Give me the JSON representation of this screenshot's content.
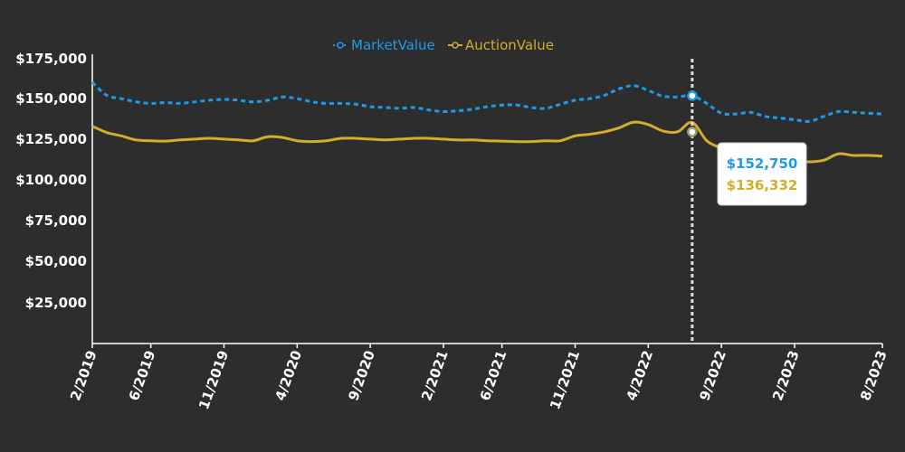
{
  "chart_data": {
    "type": "line",
    "title": "",
    "xlabel": "",
    "ylabel": "",
    "y_ticks": [
      "$25,000",
      "$50,000",
      "$75,000",
      "$100,000",
      "$125,000",
      "$150,000",
      "$175,000"
    ],
    "x_ticks": [
      "2/2019",
      "6/2019",
      "11/2019",
      "4/2020",
      "9/2020",
      "2/2021",
      "6/2021",
      "11/2021",
      "4/2022",
      "9/2022",
      "2/2023",
      "8/2023"
    ],
    "legend": {
      "placement": "top-center"
    },
    "grid": false,
    "series": [
      {
        "name": "MarketValue",
        "color": "#1e9be8",
        "style": "dotted",
        "x": [
          "2019-02",
          "2019-03",
          "2019-04",
          "2019-05",
          "2019-06",
          "2019-07",
          "2019-08",
          "2019-09",
          "2019-10",
          "2019-11",
          "2019-12",
          "2020-01",
          "2020-02",
          "2020-03",
          "2020-04",
          "2020-05",
          "2020-06",
          "2020-07",
          "2020-08",
          "2020-09",
          "2020-10",
          "2020-11",
          "2020-12",
          "2021-01",
          "2021-02",
          "2021-03",
          "2021-04",
          "2021-05",
          "2021-06",
          "2021-07",
          "2021-08",
          "2021-09",
          "2021-10",
          "2021-11",
          "2021-12",
          "2022-01",
          "2022-02",
          "2022-03",
          "2022-04",
          "2022-05",
          "2022-06",
          "2022-07",
          "2022-08",
          "2022-09",
          "2022-10",
          "2022-11",
          "2022-12",
          "2023-01",
          "2023-02",
          "2023-03",
          "2023-04",
          "2023-05",
          "2023-06",
          "2023-07",
          "2023-08"
        ],
        "values": [
          161000,
          153000,
          151000,
          149000,
          148000,
          148500,
          148000,
          149000,
          150000,
          150500,
          150000,
          149000,
          150000,
          152000,
          151000,
          149000,
          148000,
          148000,
          147500,
          146000,
          145500,
          145000,
          145500,
          144000,
          143000,
          143500,
          144500,
          146000,
          147000,
          147000,
          145500,
          145000,
          147500,
          150000,
          151000,
          153000,
          157000,
          159000,
          156000,
          152500,
          152000,
          152750,
          148000,
          142000,
          141500,
          142500,
          140000,
          139000,
          138000,
          137000,
          140000,
          143000,
          142500,
          142000,
          141500
        ]
      },
      {
        "name": "AuctionValue",
        "color": "#d4ad2b",
        "style": "solid",
        "x": [
          "2019-02",
          "2019-03",
          "2019-04",
          "2019-05",
          "2019-06",
          "2019-07",
          "2019-08",
          "2019-09",
          "2019-10",
          "2019-11",
          "2019-12",
          "2020-01",
          "2020-02",
          "2020-03",
          "2020-04",
          "2020-05",
          "2020-06",
          "2020-07",
          "2020-08",
          "2020-09",
          "2020-10",
          "2020-11",
          "2020-12",
          "2021-01",
          "2021-02",
          "2021-03",
          "2021-04",
          "2021-05",
          "2021-06",
          "2021-07",
          "2021-08",
          "2021-09",
          "2021-10",
          "2021-11",
          "2021-12",
          "2022-01",
          "2022-02",
          "2022-03",
          "2022-04",
          "2022-05",
          "2022-06",
          "2022-07",
          "2022-08",
          "2022-09",
          "2022-10",
          "2022-11",
          "2022-12",
          "2023-01",
          "2023-02",
          "2023-03",
          "2023-04",
          "2023-05",
          "2023-06",
          "2023-07",
          "2023-08"
        ],
        "values": [
          134000,
          130000,
          128000,
          125500,
          125000,
          124800,
          125500,
          126000,
          126500,
          126000,
          125500,
          125000,
          127500,
          127000,
          125000,
          124500,
          125000,
          126500,
          126500,
          126000,
          125500,
          126000,
          126500,
          126500,
          126000,
          125500,
          125500,
          125000,
          124800,
          124500,
          124500,
          125000,
          125000,
          128000,
          129000,
          130500,
          133000,
          136500,
          135000,
          131000,
          130500,
          136332,
          125000,
          120500,
          118000,
          116000,
          114500,
          113500,
          112500,
          112000,
          113000,
          117000,
          116000,
          116000,
          115500
        ]
      }
    ],
    "tooltip": {
      "x": "2022-07",
      "market_value": "$152,750",
      "auction_value": "$136,332"
    }
  }
}
